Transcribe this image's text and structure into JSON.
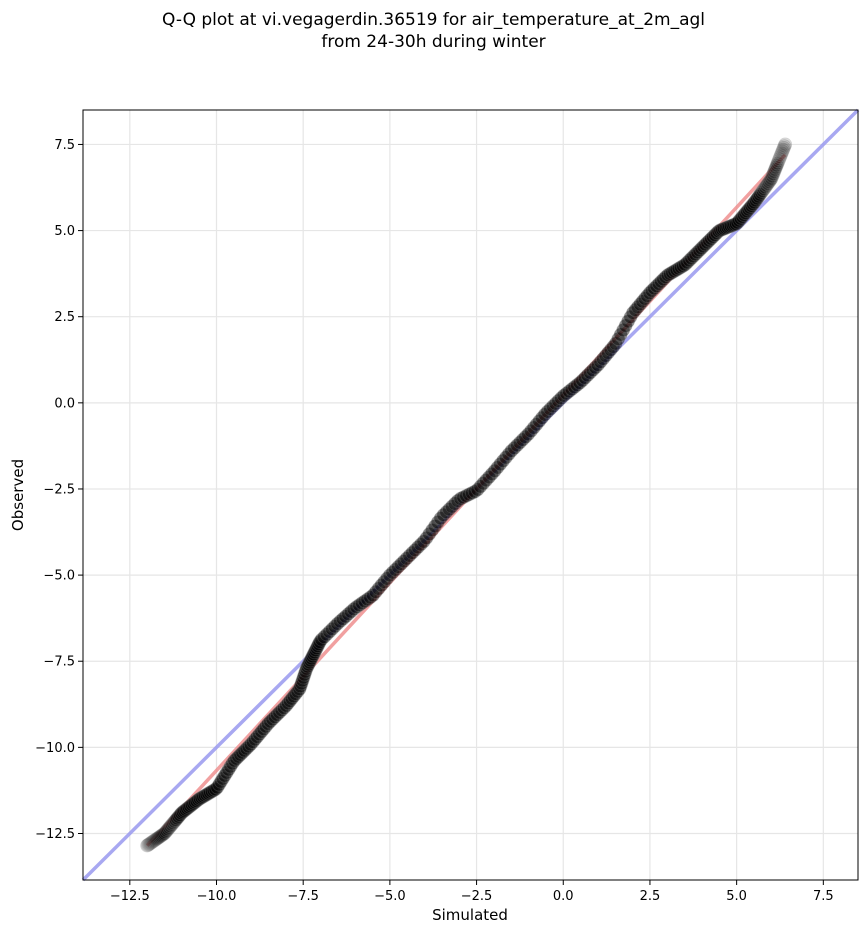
{
  "chart_data": {
    "type": "scatter",
    "title_line1": "Q-Q plot at vi.vegagerdin.36519 for air_temperature_at_2m_agl",
    "title_line2": "from 24-30h during winter",
    "xlabel": "Simulated",
    "ylabel": "Observed",
    "xlim": [
      -13.85,
      8.5
    ],
    "ylim": [
      -13.85,
      8.5
    ],
    "grid": true,
    "x_ticks": [
      -12.5,
      -10.0,
      -7.5,
      -5.0,
      -2.5,
      0.0,
      2.5,
      5.0,
      7.5
    ],
    "y_ticks": [
      -12.5,
      -10.0,
      -7.5,
      -5.0,
      -2.5,
      0.0,
      2.5,
      5.0,
      7.5
    ],
    "x_tick_labels": [
      "−12.5",
      "−10.0",
      "−7.5",
      "−5.0",
      "−2.5",
      "0.0",
      "2.5",
      "5.0",
      "7.5"
    ],
    "y_tick_labels": [
      "−12.5",
      "−10.0",
      "−7.5",
      "−5.0",
      "−2.5",
      "0.0",
      "2.5",
      "5.0",
      "7.5"
    ],
    "identity_line": {
      "color": "#9999ee"
    },
    "fit_line": {
      "color": "#ee8888",
      "x": [
        -12.0,
        6.4
      ],
      "y": [
        -12.85,
        7.2
      ]
    },
    "colors": {
      "points": "#000000",
      "point_edge": "#888888"
    },
    "quantile_anchors": {
      "simulated": [
        -12.0,
        -11.5,
        -11.0,
        -10.5,
        -10.0,
        -9.5,
        -9.0,
        -8.5,
        -8.0,
        -7.6,
        -7.4,
        -7.2,
        -7.0,
        -6.5,
        -6.0,
        -5.5,
        -5.0,
        -4.5,
        -4.0,
        -3.5,
        -3.0,
        -2.5,
        -2.0,
        -1.5,
        -1.0,
        -0.5,
        0.0,
        0.5,
        1.0,
        1.5,
        2.0,
        2.5,
        3.0,
        3.5,
        4.0,
        4.5,
        5.0,
        5.5,
        6.0,
        6.4
      ],
      "observed": [
        -12.85,
        -12.5,
        -11.9,
        -11.5,
        -11.2,
        -10.4,
        -9.9,
        -9.3,
        -8.8,
        -8.3,
        -7.7,
        -7.3,
        -6.9,
        -6.4,
        -5.95,
        -5.6,
        -5.0,
        -4.5,
        -4.0,
        -3.3,
        -2.8,
        -2.55,
        -2.0,
        -1.4,
        -0.9,
        -0.3,
        0.2,
        0.6,
        1.1,
        1.7,
        2.6,
        3.2,
        3.7,
        4.0,
        4.5,
        5.0,
        5.2,
        5.8,
        6.5,
        7.5
      ]
    }
  }
}
